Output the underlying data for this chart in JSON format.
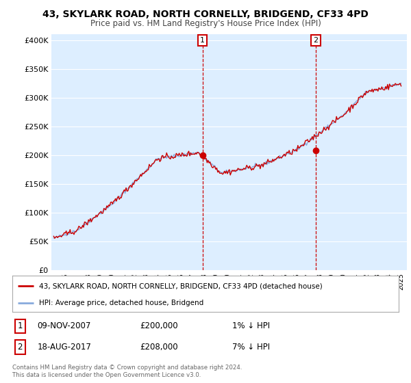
{
  "title": "43, SKYLARK ROAD, NORTH CORNELLY, BRIDGEND, CF33 4PD",
  "subtitle": "Price paid vs. HM Land Registry's House Price Index (HPI)",
  "ylim": [
    0,
    400000
  ],
  "xlim_start": 1995,
  "xlim_end": 2025,
  "sale1_x": 2007.86,
  "sale1_y": 200000,
  "sale2_x": 2017.63,
  "sale2_y": 208000,
  "sale1_date": "09-NOV-2007",
  "sale1_price": "£200,000",
  "sale1_hpi": "1% ↓ HPI",
  "sale2_date": "18-AUG-2017",
  "sale2_price": "£208,000",
  "sale2_hpi": "7% ↓ HPI",
  "legend_line1": "43, SKYLARK ROAD, NORTH CORNELLY, BRIDGEND, CF33 4PD (detached house)",
  "legend_line2": "HPI: Average price, detached house, Bridgend",
  "footer": "Contains HM Land Registry data © Crown copyright and database right 2024.\nThis data is licensed under the Open Government Licence v3.0.",
  "line_color_red": "#cc0000",
  "line_color_blue": "#88aadd",
  "plot_bg_color": "#ddeeff",
  "ytick_labels": [
    "£0",
    "£50K",
    "£100K",
    "£150K",
    "£200K",
    "£250K",
    "£300K",
    "£350K",
    "£400K"
  ],
  "ytick_values": [
    0,
    50000,
    100000,
    150000,
    200000,
    250000,
    300000,
    350000,
    400000
  ]
}
